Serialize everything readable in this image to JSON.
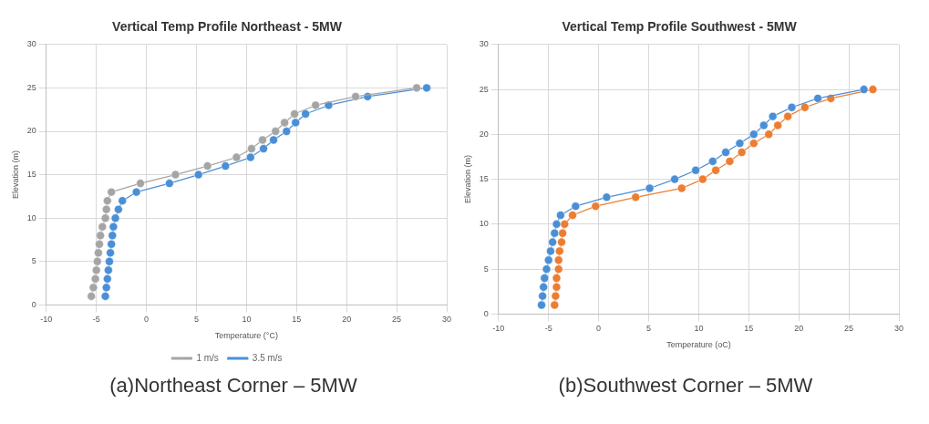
{
  "chart_data": [
    {
      "type": "line",
      "title": "Vertical Temp Profile Northeast - 5MW",
      "xlabel": "Temperature (°C)",
      "ylabel": "Elevation (m)",
      "xlim": [
        -10,
        30
      ],
      "xticks": [
        -10,
        -5,
        0,
        5,
        10,
        15,
        20,
        25,
        30
      ],
      "ylim": [
        0,
        30
      ],
      "yticks": [
        0,
        5,
        10,
        15,
        20,
        25,
        30
      ],
      "grid": true,
      "legend": "bottom",
      "marker": "circle",
      "line_style": "solid",
      "annotations": [
        "(a)Northeast Corner – 5MW"
      ],
      "series": [
        {
          "name": "1 m/s",
          "color": "#a5a5a5",
          "x": [
            -5.5,
            -5.3,
            -5.1,
            -5.0,
            -4.9,
            -4.8,
            -4.7,
            -4.6,
            -4.4,
            -4.1,
            -4.0,
            -3.9,
            -3.5,
            -0.6,
            2.9,
            6.1,
            9.0,
            10.5,
            11.6,
            12.9,
            13.8,
            14.8,
            16.9,
            20.9,
            27.0
          ],
          "values": [
            1,
            2,
            3,
            4,
            5,
            6,
            7,
            8,
            9,
            10,
            11,
            12,
            13,
            14,
            15,
            16,
            17,
            18,
            19,
            20,
            21,
            22,
            23,
            24,
            25
          ]
        },
        {
          "name": "3.5 m/s",
          "color": "#4a8fd6",
          "x": [
            -4.1,
            -4.0,
            -3.9,
            -3.8,
            -3.7,
            -3.6,
            -3.5,
            -3.4,
            -3.3,
            -3.1,
            -2.8,
            -2.4,
            -1.0,
            2.3,
            5.2,
            7.9,
            10.4,
            11.7,
            12.7,
            14.0,
            14.9,
            15.9,
            18.2,
            22.1,
            28.0
          ],
          "values": [
            1,
            2,
            3,
            4,
            5,
            6,
            7,
            8,
            9,
            10,
            11,
            12,
            13,
            14,
            15,
            16,
            17,
            18,
            19,
            20,
            21,
            22,
            23,
            24,
            25
          ]
        }
      ]
    },
    {
      "type": "line",
      "title": "Vertical Temp Profile Southwest - 5MW",
      "xlabel": "Temperature (oC)",
      "ylabel": "Elevation (m)",
      "xlim": [
        -10,
        30
      ],
      "xticks": [
        -10,
        -5,
        0,
        5,
        10,
        15,
        20,
        25,
        30
      ],
      "ylim": [
        0,
        30
      ],
      "yticks": [
        0,
        5,
        10,
        15,
        20,
        25,
        30
      ],
      "grid": true,
      "marker": "circle",
      "line_style": "solid",
      "annotations": [
        "(b)Southwest Corner – 5MW"
      ],
      "series": [
        {
          "color": "#4a8fd6",
          "x": [
            -5.7,
            -5.6,
            -5.5,
            -5.4,
            -5.2,
            -5.0,
            -4.8,
            -4.6,
            -4.4,
            -4.2,
            -3.8,
            -2.3,
            0.8,
            5.1,
            7.6,
            9.7,
            11.4,
            12.7,
            14.1,
            15.5,
            16.5,
            17.4,
            19.3,
            21.9,
            26.5
          ],
          "values": [
            1,
            2,
            3,
            4,
            5,
            6,
            7,
            8,
            9,
            10,
            11,
            12,
            13,
            14,
            15,
            16,
            17,
            18,
            19,
            20,
            21,
            22,
            23,
            24,
            25
          ]
        },
        {
          "color": "#ed7d31",
          "x": [
            -4.4,
            -4.3,
            -4.2,
            -4.2,
            -4.0,
            -4.0,
            -3.9,
            -3.7,
            -3.6,
            -3.4,
            -2.6,
            -0.3,
            3.7,
            8.3,
            10.4,
            11.7,
            13.1,
            14.3,
            15.5,
            17.0,
            17.9,
            18.9,
            20.6,
            23.2,
            27.4
          ],
          "values": [
            1,
            2,
            3,
            4,
            5,
            6,
            7,
            8,
            9,
            10,
            11,
            12,
            13,
            14,
            15,
            16,
            17,
            18,
            19,
            20,
            21,
            22,
            23,
            24,
            25
          ]
        }
      ]
    }
  ]
}
